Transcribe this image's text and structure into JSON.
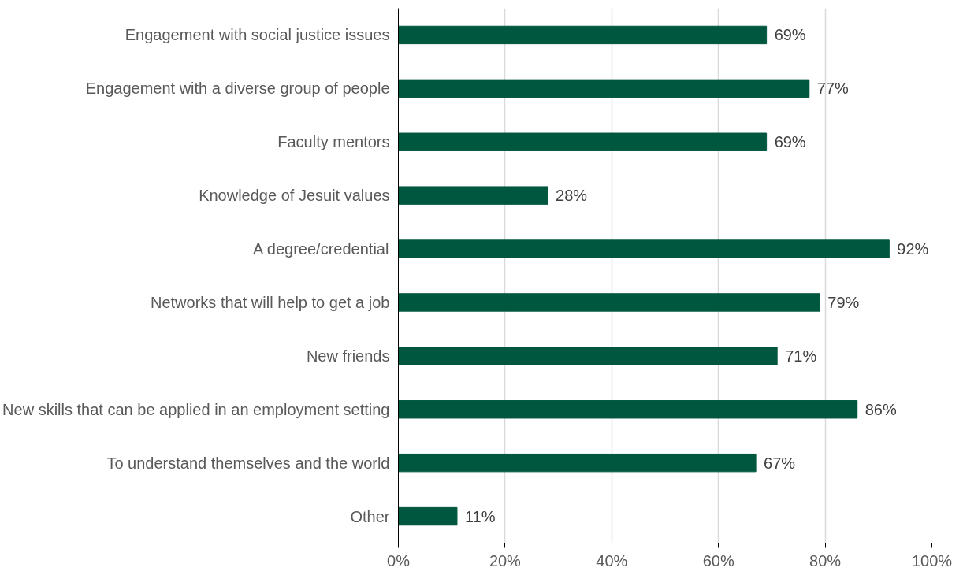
{
  "chart_data": {
    "type": "bar",
    "orientation": "horizontal",
    "categories": [
      "Engagement with social justice issues",
      "Engagement with a diverse group of people",
      "Faculty mentors",
      "Knowledge of Jesuit values",
      "A degree/credential",
      "Networks that will help to get a job",
      "New friends",
      "New skills that can be applied in an employment setting",
      "To understand themselves and the world",
      "Other"
    ],
    "values": [
      69,
      77,
      69,
      28,
      92,
      79,
      71,
      86,
      67,
      11
    ],
    "value_labels": [
      "69%",
      "77%",
      "69%",
      "28%",
      "92%",
      "79%",
      "71%",
      "86%",
      "67%",
      "11%"
    ],
    "color": "#00573f",
    "xlim": [
      0,
      100
    ],
    "xticks": [
      {
        "value": 0,
        "label": "0%"
      },
      {
        "value": 20,
        "label": "20%"
      },
      {
        "value": 40,
        "label": "40%"
      },
      {
        "value": 60,
        "label": "60%"
      },
      {
        "value": 80,
        "label": "80%"
      },
      {
        "value": 100,
        "label": "100%"
      }
    ],
    "grid": "x"
  }
}
